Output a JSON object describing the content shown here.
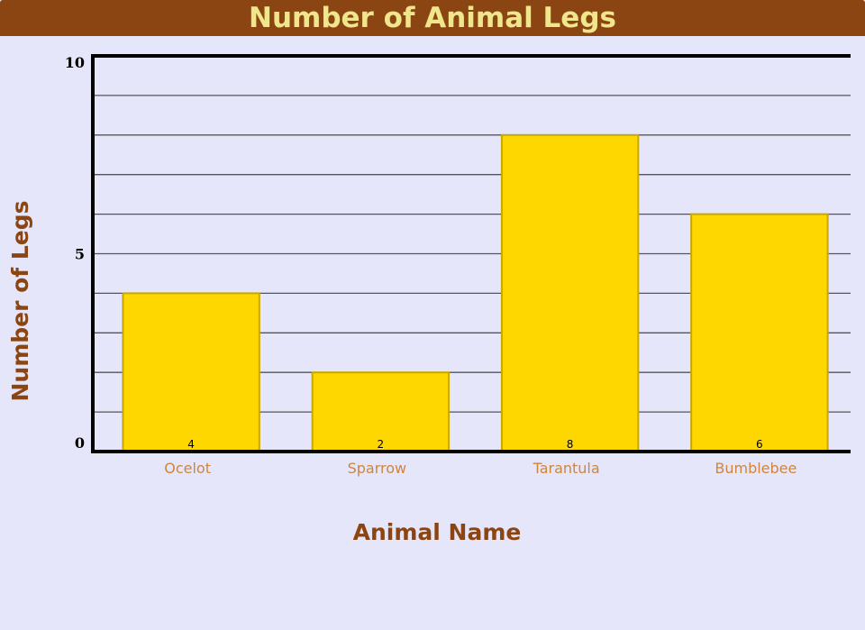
{
  "chart_data": {
    "type": "bar",
    "title": "Number of Animal Legs",
    "xlabel": "Animal Name",
    "ylabel": "Number of Legs",
    "categories": [
      "Ocelot",
      "Sparrow",
      "Tarantula",
      "Bumblebee"
    ],
    "values": [
      4,
      2,
      8,
      6
    ],
    "ylim": [
      0,
      10
    ],
    "yticks": [
      0,
      5,
      10
    ],
    "grid": true,
    "legend": "none"
  },
  "colors": {
    "bar_fill": "#ffd700",
    "bar_stroke": "#c8a800",
    "title_bg": "#8b4513",
    "title_text": "#f0e68c",
    "axis_label": "#8b4513",
    "tick_label": "#cd853f",
    "background": "#e6e6fa",
    "grid": "#555555"
  }
}
